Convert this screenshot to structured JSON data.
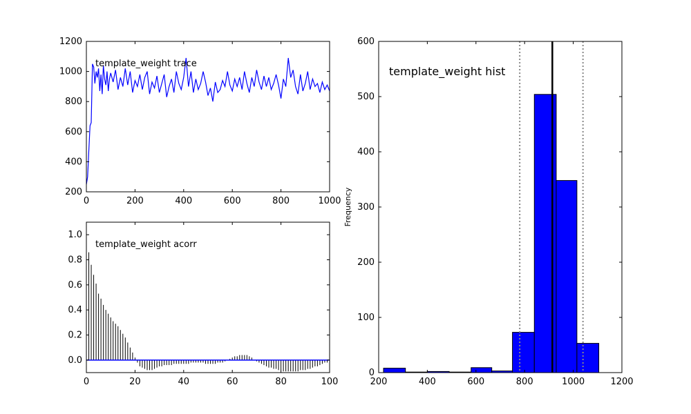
{
  "chart_data": [
    {
      "type": "line",
      "title": "template_weight trace",
      "xlabel": "",
      "ylabel": "",
      "xlim": [
        0,
        1000
      ],
      "ylim": [
        200,
        1200
      ],
      "xticks": [
        0,
        200,
        400,
        600,
        800,
        1000
      ],
      "yticks": [
        200,
        400,
        600,
        800,
        1000,
        1200
      ],
      "grid": false,
      "color": "#0000ff",
      "x": [
        0,
        5,
        10,
        15,
        20,
        25,
        30,
        35,
        40,
        45,
        50,
        55,
        60,
        65,
        70,
        75,
        80,
        85,
        90,
        95,
        100,
        110,
        120,
        130,
        140,
        150,
        160,
        170,
        180,
        190,
        200,
        210,
        220,
        230,
        240,
        250,
        260,
        270,
        280,
        290,
        300,
        310,
        320,
        330,
        340,
        350,
        360,
        370,
        380,
        390,
        400,
        410,
        420,
        430,
        440,
        450,
        460,
        470,
        480,
        490,
        500,
        510,
        520,
        530,
        540,
        550,
        560,
        570,
        580,
        590,
        600,
        610,
        620,
        630,
        640,
        650,
        660,
        670,
        680,
        690,
        700,
        710,
        720,
        730,
        740,
        750,
        760,
        770,
        780,
        790,
        800,
        810,
        820,
        830,
        840,
        850,
        860,
        870,
        880,
        890,
        900,
        910,
        920,
        930,
        940,
        950,
        960,
        970,
        980,
        990,
        1000
      ],
      "values": [
        250,
        300,
        470,
        640,
        660,
        1050,
        1030,
        920,
        1000,
        960,
        1020,
        870,
        980,
        850,
        1040,
        950,
        910,
        1000,
        870,
        950,
        990,
        930,
        1010,
        880,
        960,
        900,
        1020,
        910,
        1000,
        860,
        940,
        900,
        980,
        880,
        960,
        1000,
        850,
        930,
        890,
        970,
        860,
        920,
        980,
        830,
        900,
        950,
        860,
        1000,
        920,
        880,
        960,
        1090,
        900,
        1000,
        860,
        950,
        880,
        920,
        1000,
        930,
        840,
        890,
        800,
        930,
        860,
        880,
        940,
        900,
        1000,
        910,
        870,
        950,
        900,
        960,
        880,
        1000,
        920,
        860,
        960,
        900,
        1010,
        930,
        880,
        970,
        900,
        960,
        880,
        920,
        980,
        910,
        820,
        950,
        900,
        1090,
        960,
        1010,
        900,
        850,
        980,
        870,
        920,
        1000,
        880,
        950,
        900,
        920,
        860,
        930,
        880,
        910,
        870
      ]
    },
    {
      "type": "bar",
      "title": "template_weight acorr",
      "xlabel": "",
      "ylabel": "",
      "xlim": [
        0,
        100
      ],
      "ylim": [
        -0.1,
        1.1
      ],
      "xticks": [
        0,
        20,
        40,
        60,
        80,
        100
      ],
      "yticks": [
        0.0,
        0.2,
        0.4,
        0.6,
        0.8,
        1.0
      ],
      "grid": false,
      "baseline_color": "#0000ff",
      "lags": [
        1,
        2,
        3,
        4,
        5,
        6,
        7,
        8,
        9,
        10,
        11,
        12,
        13,
        14,
        15,
        16,
        17,
        18,
        19,
        20,
        21,
        22,
        23,
        24,
        25,
        26,
        27,
        28,
        29,
        30,
        31,
        32,
        33,
        34,
        35,
        36,
        37,
        38,
        39,
        40,
        41,
        42,
        43,
        44,
        45,
        46,
        47,
        48,
        49,
        50,
        51,
        52,
        53,
        54,
        55,
        56,
        57,
        58,
        59,
        60,
        61,
        62,
        63,
        64,
        65,
        66,
        67,
        68,
        69,
        70,
        71,
        72,
        73,
        74,
        75,
        76,
        77,
        78,
        79,
        80,
        81,
        82,
        83,
        84,
        85,
        86,
        87,
        88,
        89,
        90,
        91,
        92,
        93,
        94,
        95,
        96,
        97,
        98,
        99
      ],
      "values": [
        0.86,
        0.76,
        0.68,
        0.61,
        0.53,
        0.49,
        0.44,
        0.4,
        0.37,
        0.34,
        0.31,
        0.29,
        0.27,
        0.24,
        0.21,
        0.18,
        0.14,
        0.1,
        0.06,
        0.02,
        -0.02,
        -0.05,
        -0.06,
        -0.07,
        -0.08,
        -0.08,
        -0.08,
        -0.07,
        -0.06,
        -0.05,
        -0.05,
        -0.04,
        -0.04,
        -0.04,
        -0.04,
        -0.03,
        -0.03,
        -0.03,
        -0.03,
        -0.03,
        -0.03,
        -0.03,
        -0.02,
        -0.02,
        -0.02,
        -0.02,
        -0.02,
        -0.02,
        -0.03,
        -0.03,
        -0.03,
        -0.03,
        -0.03,
        -0.02,
        -0.02,
        -0.02,
        -0.01,
        0.0,
        0.01,
        0.02,
        0.03,
        0.03,
        0.04,
        0.04,
        0.04,
        0.04,
        0.03,
        0.02,
        0.0,
        -0.01,
        -0.02,
        -0.03,
        -0.04,
        -0.05,
        -0.06,
        -0.06,
        -0.07,
        -0.07,
        -0.08,
        -0.08,
        -0.09,
        -0.09,
        -0.09,
        -0.09,
        -0.09,
        -0.09,
        -0.09,
        -0.08,
        -0.08,
        -0.08,
        -0.07,
        -0.07,
        -0.06,
        -0.05,
        -0.05,
        -0.04,
        -0.03,
        -0.02,
        -0.02
      ]
    },
    {
      "type": "histogram",
      "title": "template_weight hist",
      "xlabel": "",
      "ylabel": "Frequency",
      "xlim": [
        200,
        1200
      ],
      "ylim": [
        0,
        600
      ],
      "xticks": [
        200,
        400,
        600,
        800,
        1000,
        1200
      ],
      "yticks": [
        0,
        100,
        200,
        300,
        400,
        500,
        600
      ],
      "grid": false,
      "bar_color": "#0000ff",
      "bin_edges": [
        220,
        310,
        400,
        490,
        580,
        665,
        750,
        840,
        930,
        1015,
        1105
      ],
      "counts": [
        8,
        1,
        2,
        1,
        9,
        3,
        73,
        504,
        348,
        53
      ],
      "mean_line": 914,
      "ci_lines": [
        780,
        1040
      ]
    }
  ]
}
